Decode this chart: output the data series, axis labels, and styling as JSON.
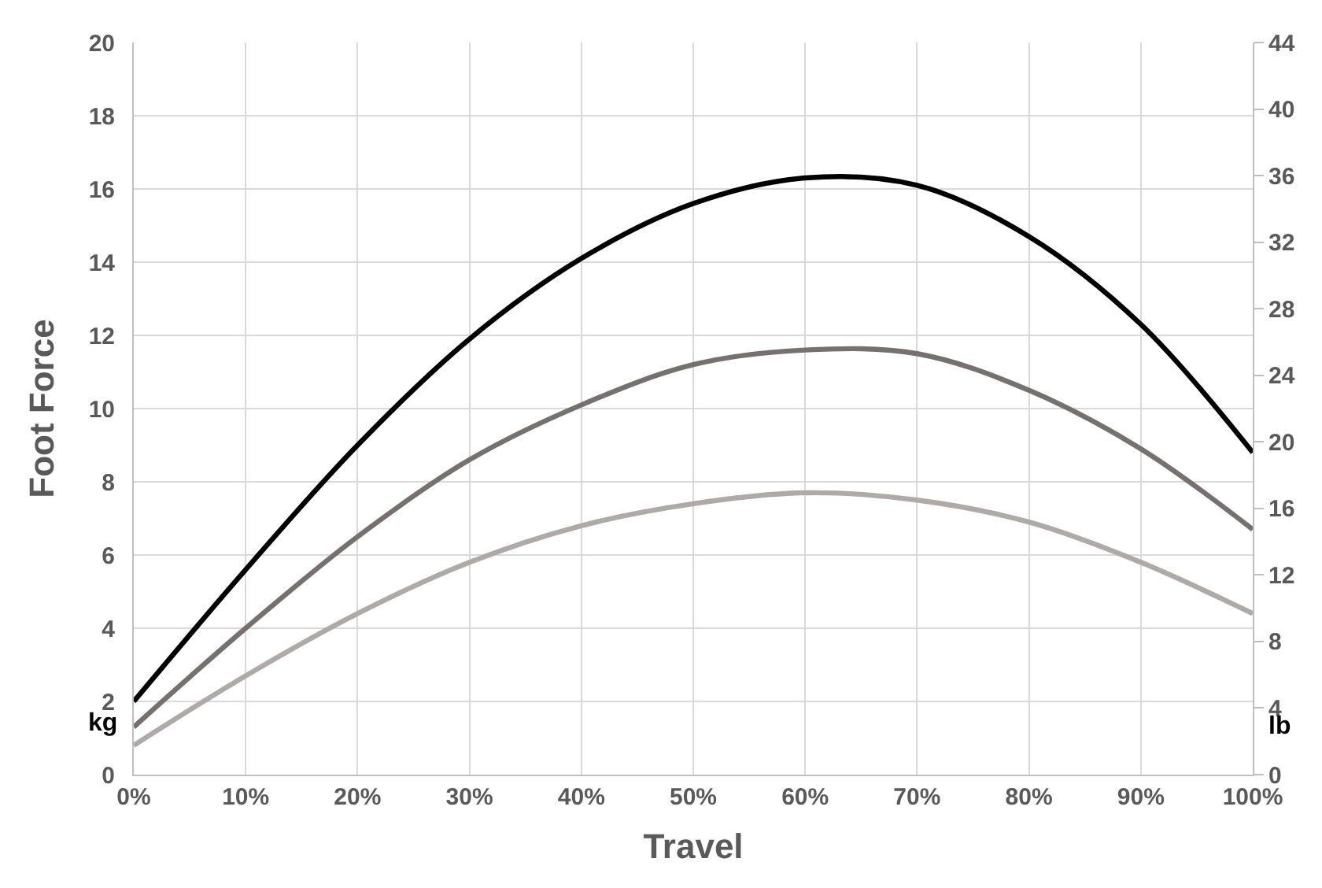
{
  "chart_data": {
    "type": "line",
    "xlabel": "Travel",
    "ylabel": "Foot Force",
    "x": [
      0,
      10,
      20,
      30,
      40,
      50,
      60,
      70,
      80,
      90,
      100
    ],
    "series": [
      {
        "color": "#000000",
        "values": [
          2.0,
          5.6,
          9.0,
          11.9,
          14.1,
          15.6,
          16.3,
          16.1,
          14.7,
          12.3,
          8.8
        ]
      },
      {
        "color": "#767171",
        "values": [
          1.3,
          4.0,
          6.5,
          8.6,
          10.1,
          11.2,
          11.6,
          11.5,
          10.5,
          8.9,
          6.7
        ]
      },
      {
        "color": "#aeaaaa",
        "values": [
          0.8,
          2.7,
          4.4,
          5.8,
          6.8,
          7.4,
          7.7,
          7.5,
          6.9,
          5.8,
          4.4
        ]
      }
    ],
    "xlim": [
      0,
      100
    ],
    "xticks": [
      {
        "value": 0,
        "label": "0%"
      },
      {
        "value": 10,
        "label": "10%"
      },
      {
        "value": 20,
        "label": "20%"
      },
      {
        "value": 30,
        "label": "30%"
      },
      {
        "value": 40,
        "label": "40%"
      },
      {
        "value": 50,
        "label": "50%"
      },
      {
        "value": 60,
        "label": "60%"
      },
      {
        "value": 70,
        "label": "70%"
      },
      {
        "value": 80,
        "label": "80%"
      },
      {
        "value": 90,
        "label": "90%"
      },
      {
        "value": 100,
        "label": "100%"
      }
    ],
    "ylim": [
      0,
      20
    ],
    "yticks": [
      0,
      2,
      4,
      6,
      8,
      10,
      12,
      14,
      16,
      18,
      20
    ],
    "y2lim": [
      0,
      44
    ],
    "y2ticks": [
      0,
      4,
      8,
      12,
      16,
      20,
      24,
      28,
      32,
      36,
      40,
      44
    ],
    "annotations": [
      "kg",
      "lb"
    ],
    "grid": true,
    "marker": "none",
    "line_style": "solid"
  }
}
